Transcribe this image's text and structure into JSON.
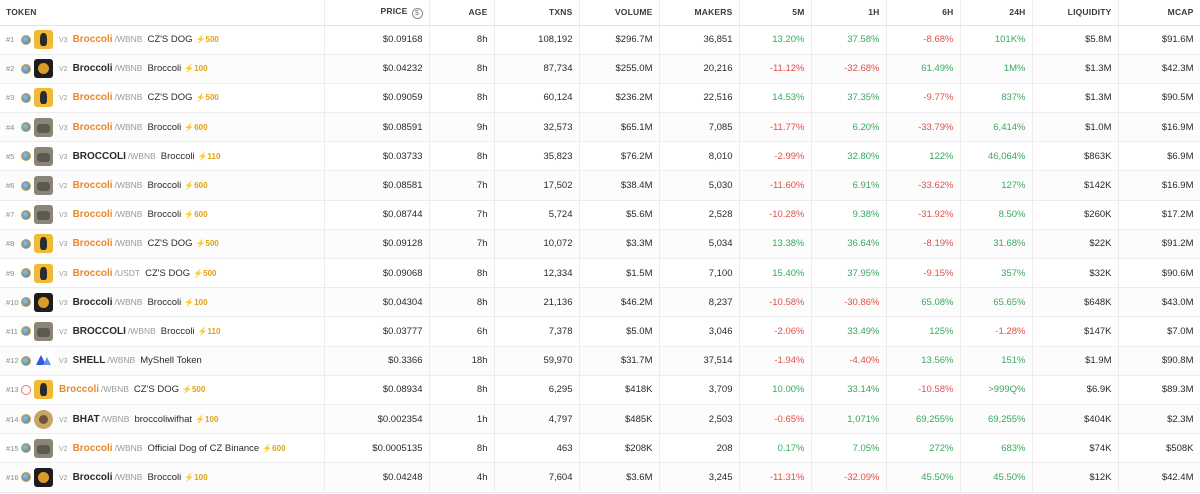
{
  "headers": {
    "token": "TOKEN",
    "price": "PRICE",
    "price_icon": "$",
    "age": "AGE",
    "txns": "TXNS",
    "volume": "VOLUME",
    "makers": "MAKERS",
    "m5": "5M",
    "h1": "1H",
    "h6": "6H",
    "h24": "24H",
    "liquidity": "LIQUIDITY",
    "mcap": "MCAP"
  },
  "colors": {
    "positive": "#3aa85f",
    "negative": "#e2504a",
    "symbol_orange": "#e8892a",
    "boost": "#e0a010"
  },
  "rows": [
    {
      "rank": "#1",
      "chain_icon": "bnb-chain-icon",
      "avatar": "dog",
      "ver": "V3",
      "symbol": "Broccoli",
      "symbol_style": "orange",
      "quote": "/WBNB",
      "name": "CZ'S DOG",
      "boost": "⚡500",
      "price": "$0.09168",
      "age": "8h",
      "txns": "108,192",
      "volume": "$296.7M",
      "makers": "36,851",
      "m5": "13.20%",
      "h1": "37.58%",
      "h6": "-8.68%",
      "h24": "101K%",
      "liquidity": "$5.8M",
      "mcap": "$91.6M"
    },
    {
      "rank": "#2",
      "chain_icon": "bnb-chain-icon",
      "avatar": "dark",
      "ver": "V2",
      "symbol": "Broccoli",
      "symbol_style": "plain",
      "quote": "/WBNB",
      "name": "Broccoli",
      "boost": "⚡100",
      "price": "$0.04232",
      "age": "8h",
      "txns": "87,734",
      "volume": "$255.0M",
      "makers": "20,216",
      "m5": "-11.12%",
      "h1": "-32.68%",
      "h6": "61.49%",
      "h24": "1M%",
      "liquidity": "$1.3M",
      "mcap": "$42.3M"
    },
    {
      "rank": "#3",
      "chain_icon": "bnb-chain-icon",
      "avatar": "dog",
      "ver": "V2",
      "symbol": "Broccoli",
      "symbol_style": "orange",
      "quote": "/WBNB",
      "name": "CZ'S DOG",
      "boost": "⚡500",
      "price": "$0.09059",
      "age": "8h",
      "txns": "60,124",
      "volume": "$236.2M",
      "makers": "22,516",
      "m5": "14.53%",
      "h1": "37.35%",
      "h6": "-9.77%",
      "h24": "837%",
      "liquidity": "$1.3M",
      "mcap": "$90.5M"
    },
    {
      "rank": "#4",
      "chain_icon": "bnb-chain-icon",
      "avatar": "gray",
      "ver": "V3",
      "symbol": "Broccoli",
      "symbol_style": "orange",
      "quote": "/WBNB",
      "name": "Broccoli",
      "boost": "⚡600",
      "price": "$0.08591",
      "age": "9h",
      "txns": "32,573",
      "volume": "$65.1M",
      "makers": "7,085",
      "m5": "-11.77%",
      "h1": "6.20%",
      "h6": "-33.79%",
      "h24": "6,414%",
      "liquidity": "$1.0M",
      "mcap": "$16.9M"
    },
    {
      "rank": "#5",
      "chain_icon": "bnb-chain-icon",
      "avatar": "gray",
      "ver": "V3",
      "symbol": "BROCCOLI",
      "symbol_style": "plain",
      "quote": "/WBNB",
      "name": "Broccoli",
      "boost": "⚡110",
      "price": "$0.03733",
      "age": "8h",
      "txns": "35,823",
      "volume": "$76.2M",
      "makers": "8,010",
      "m5": "-2.99%",
      "h1": "32.80%",
      "h6": "122%",
      "h24": "46,064%",
      "liquidity": "$863K",
      "mcap": "$6.9M"
    },
    {
      "rank": "#6",
      "chain_icon": "bnb-chain-icon",
      "avatar": "gray",
      "ver": "V2",
      "symbol": "Broccoli",
      "symbol_style": "orange",
      "quote": "/WBNB",
      "name": "Broccoli",
      "boost": "⚡600",
      "price": "$0.08581",
      "age": "7h",
      "txns": "17,502",
      "volume": "$38.4M",
      "makers": "5,030",
      "m5": "-11.60%",
      "h1": "6.91%",
      "h6": "-33.62%",
      "h24": "127%",
      "liquidity": "$142K",
      "mcap": "$16.9M"
    },
    {
      "rank": "#7",
      "chain_icon": "bnb-chain-icon",
      "avatar": "gray",
      "ver": "V3",
      "symbol": "Broccoli",
      "symbol_style": "orange",
      "quote": "/WBNB",
      "name": "Broccoli",
      "boost": "⚡600",
      "price": "$0.08744",
      "age": "7h",
      "txns": "5,724",
      "volume": "$5.6M",
      "makers": "2,528",
      "m5": "-10.28%",
      "h1": "9.38%",
      "h6": "-31.92%",
      "h24": "8.50%",
      "liquidity": "$260K",
      "mcap": "$17.2M"
    },
    {
      "rank": "#8",
      "chain_icon": "bnb-chain-icon",
      "avatar": "dog",
      "ver": "V3",
      "symbol": "Broccoli",
      "symbol_style": "orange",
      "quote": "/WBNB",
      "name": "CZ'S DOG",
      "boost": "⚡500",
      "price": "$0.09128",
      "age": "7h",
      "txns": "10,072",
      "volume": "$3.3M",
      "makers": "5,034",
      "m5": "13.38%",
      "h1": "36.64%",
      "h6": "-8.19%",
      "h24": "31.68%",
      "liquidity": "$22K",
      "mcap": "$91.2M"
    },
    {
      "rank": "#9",
      "chain_icon": "bnb-chain-icon",
      "avatar": "dog",
      "ver": "V3",
      "symbol": "Broccoli",
      "symbol_style": "orange",
      "quote": "/USDT",
      "name": "CZ'S DOG",
      "boost": "⚡500",
      "price": "$0.09068",
      "age": "8h",
      "txns": "12,334",
      "volume": "$1.5M",
      "makers": "7,100",
      "m5": "15.40%",
      "h1": "37.95%",
      "h6": "-9.15%",
      "h24": "357%",
      "liquidity": "$32K",
      "mcap": "$90.6M"
    },
    {
      "rank": "#10",
      "chain_icon": "bnb-chain-icon",
      "avatar": "dark",
      "ver": "V3",
      "symbol": "Broccoli",
      "symbol_style": "plain",
      "quote": "/WBNB",
      "name": "Broccoli",
      "boost": "⚡100",
      "price": "$0.04304",
      "age": "8h",
      "txns": "21,136",
      "volume": "$46.2M",
      "makers": "8,237",
      "m5": "-10.58%",
      "h1": "-30.86%",
      "h6": "65.08%",
      "h24": "65.65%",
      "liquidity": "$648K",
      "mcap": "$43.0M"
    },
    {
      "rank": "#11",
      "chain_icon": "bnb-chain-icon",
      "avatar": "gray",
      "ver": "V2",
      "symbol": "BROCCOLI",
      "symbol_style": "plain",
      "quote": "/WBNB",
      "name": "Broccoli",
      "boost": "⚡110",
      "price": "$0.03777",
      "age": "6h",
      "txns": "7,378",
      "volume": "$5.0M",
      "makers": "3,046",
      "m5": "-2.06%",
      "h1": "33.49%",
      "h6": "125%",
      "h24": "-1.28%",
      "liquidity": "$147K",
      "mcap": "$7.0M"
    },
    {
      "rank": "#12",
      "chain_icon": "bnb-chain-icon",
      "avatar": "shell",
      "ver": "V3",
      "symbol": "SHELL",
      "symbol_style": "plain",
      "quote": "/WBNB",
      "name": "MyShell Token",
      "boost": "",
      "price": "$0.3366",
      "age": "18h",
      "txns": "59,970",
      "volume": "$31.7M",
      "makers": "37,514",
      "m5": "-1.94%",
      "h1": "-4.40%",
      "h6": "13.56%",
      "h24": "151%",
      "liquidity": "$1.9M",
      "mcap": "$90.8M"
    },
    {
      "rank": "#13",
      "chain_icon": "four-meme-icon",
      "avatar": "dog",
      "ver": "",
      "symbol": "Broccoli",
      "symbol_style": "orange",
      "quote": "/WBNB",
      "name": "CZ'S DOG",
      "boost": "⚡500",
      "price": "$0.08934",
      "age": "8h",
      "txns": "6,295",
      "volume": "$418K",
      "makers": "3,709",
      "m5": "10.00%",
      "h1": "33.14%",
      "h6": "-10.58%",
      "h24": ">999Q%",
      "liquidity": "$6.9K",
      "mcap": "$89.3M"
    },
    {
      "rank": "#14",
      "chain_icon": "bnb-chain-icon",
      "avatar": "round",
      "ver": "V2",
      "symbol": "BHAT",
      "symbol_style": "plain",
      "quote": "/WBNB",
      "name": "broccoliwifhat",
      "boost": "⚡100",
      "price": "$0.002354",
      "age": "1h",
      "txns": "4,797",
      "volume": "$485K",
      "makers": "2,503",
      "m5": "-0.65%",
      "h1": "1,071%",
      "h6": "69,255%",
      "h24": "69,255%",
      "liquidity": "$404K",
      "mcap": "$2.3M"
    },
    {
      "rank": "#15",
      "chain_icon": "bnb-chain-icon",
      "avatar": "gray",
      "ver": "V2",
      "symbol": "Broccoli",
      "symbol_style": "orange",
      "quote": "/WBNB",
      "name": "Official Dog of CZ Binance",
      "boost": "⚡600",
      "price": "$0.0005135",
      "age": "8h",
      "txns": "463",
      "volume": "$208K",
      "makers": "208",
      "m5": "0.17%",
      "h1": "7.05%",
      "h6": "272%",
      "h24": "683%",
      "liquidity": "$74K",
      "mcap": "$508K"
    },
    {
      "rank": "#16",
      "chain_icon": "bnb-chain-icon",
      "avatar": "dark",
      "ver": "V2",
      "symbol": "Broccoli",
      "symbol_style": "plain",
      "quote": "/WBNB",
      "name": "Broccoli",
      "boost": "⚡100",
      "price": "$0.04248",
      "age": "4h",
      "txns": "7,604",
      "volume": "$3.6M",
      "makers": "3,245",
      "m5": "-11.31%",
      "h1": "-32.09%",
      "h6": "45.50%",
      "h24": "45.50%",
      "liquidity": "$12K",
      "mcap": "$42.4M"
    }
  ]
}
